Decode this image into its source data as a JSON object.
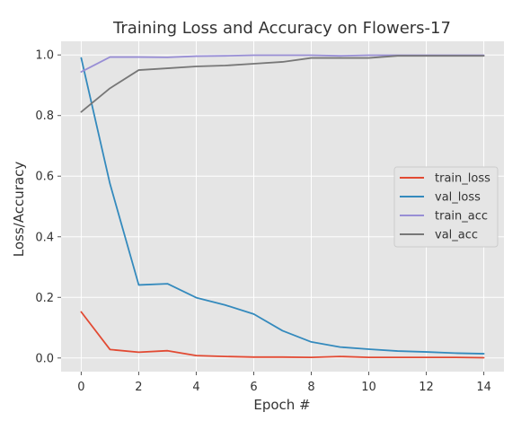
{
  "chart_data": {
    "type": "line",
    "title": "Training Loss and Accuracy on Flowers-17",
    "xlabel": "Epoch #",
    "ylabel": "Loss/Accuracy",
    "xlim": [
      -0.7,
      14.7
    ],
    "ylim": [
      -0.045,
      1.045
    ],
    "xticks": [
      0,
      2,
      4,
      6,
      8,
      10,
      12,
      14
    ],
    "yticks": [
      0.0,
      0.2,
      0.4,
      0.6,
      0.8,
      1.0
    ],
    "grid": true,
    "legend_position": "center-right",
    "x": [
      0,
      1,
      2,
      3,
      4,
      5,
      6,
      7,
      8,
      9,
      10,
      11,
      12,
      13,
      14
    ],
    "series": [
      {
        "name": "train_loss",
        "color": "#e24a33",
        "values": [
          0.152,
          0.028,
          0.019,
          0.024,
          0.008,
          0.005,
          0.003,
          0.003,
          0.002,
          0.005,
          0.002,
          0.002,
          0.002,
          0.002,
          0.001
        ]
      },
      {
        "name": "val_loss",
        "color": "#348abd",
        "values": [
          0.99,
          0.575,
          0.241,
          0.245,
          0.199,
          0.175,
          0.145,
          0.09,
          0.053,
          0.036,
          0.029,
          0.023,
          0.02,
          0.016,
          0.014
        ]
      },
      {
        "name": "train_acc",
        "color": "#988ed5",
        "values": [
          0.944,
          0.993,
          0.993,
          0.992,
          0.996,
          0.997,
          0.999,
          0.999,
          0.999,
          0.997,
          0.999,
          0.999,
          0.999,
          0.999,
          0.999
        ]
      },
      {
        "name": "val_acc",
        "color": "#777777",
        "values": [
          0.812,
          0.89,
          0.95,
          0.956,
          0.962,
          0.965,
          0.971,
          0.977,
          0.99,
          0.99,
          0.99,
          0.997,
          0.997,
          0.997,
          0.997
        ]
      }
    ]
  },
  "colors": {
    "plot_background": "#e5e5e5",
    "grid": "#ffffff",
    "text": "#555555"
  }
}
